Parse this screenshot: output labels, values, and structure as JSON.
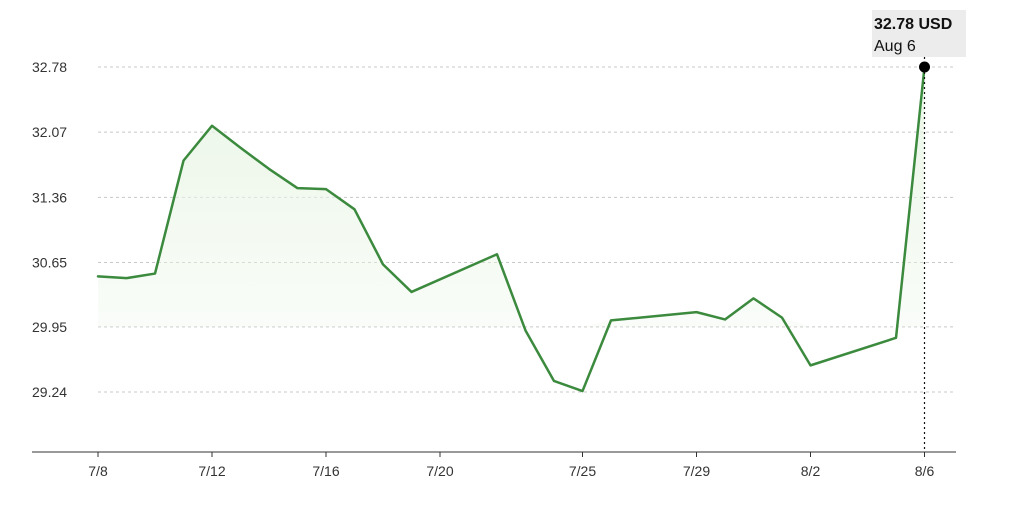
{
  "chart_data": {
    "type": "area",
    "currency": "USD",
    "yticks": [
      29.24,
      29.95,
      30.65,
      31.36,
      32.07,
      32.78
    ],
    "ytick_labels": [
      "29.24",
      "29.95",
      "30.65",
      "31.36",
      "32.07",
      "32.78"
    ],
    "ylim": [
      28.6,
      33.2
    ],
    "xticks": [
      "7/8",
      "7/12",
      "7/16",
      "7/20",
      "7/25",
      "7/29",
      "8/2",
      "8/6"
    ],
    "grid": true,
    "line_color": "#3b8a3e",
    "fill_color": "#e9f5e5",
    "series": [
      {
        "points": [
          {
            "x": 0.0,
            "y": 30.5
          },
          {
            "x": 1.0,
            "y": 30.48
          },
          {
            "x": 2.0,
            "y": 30.53
          },
          {
            "x": 3.0,
            "y": 31.76
          },
          {
            "x": 4.0,
            "y": 32.14
          },
          {
            "x": 5.0,
            "y": 31.9
          },
          {
            "x": 6.0,
            "y": 31.67
          },
          {
            "x": 7.0,
            "y": 31.46
          },
          {
            "x": 8.0,
            "y": 31.45
          },
          {
            "x": 9.0,
            "y": 31.23
          },
          {
            "x": 10.0,
            "y": 30.63
          },
          {
            "x": 11.0,
            "y": 30.33
          },
          {
            "x": 14.0,
            "y": 30.74
          },
          {
            "x": 15.0,
            "y": 29.91
          },
          {
            "x": 16.0,
            "y": 29.36
          },
          {
            "x": 17.0,
            "y": 29.25
          },
          {
            "x": 18.0,
            "y": 30.02
          },
          {
            "x": 21.0,
            "y": 30.11
          },
          {
            "x": 22.0,
            "y": 30.03
          },
          {
            "x": 23.0,
            "y": 30.26
          },
          {
            "x": 24.0,
            "y": 30.05
          },
          {
            "x": 25.0,
            "y": 29.53
          },
          {
            "x": 28.0,
            "y": 29.83
          },
          {
            "x": 29.0,
            "y": 32.78
          }
        ]
      }
    ],
    "tooltip": {
      "value": "32.78 USD",
      "date": "Aug 6"
    }
  }
}
